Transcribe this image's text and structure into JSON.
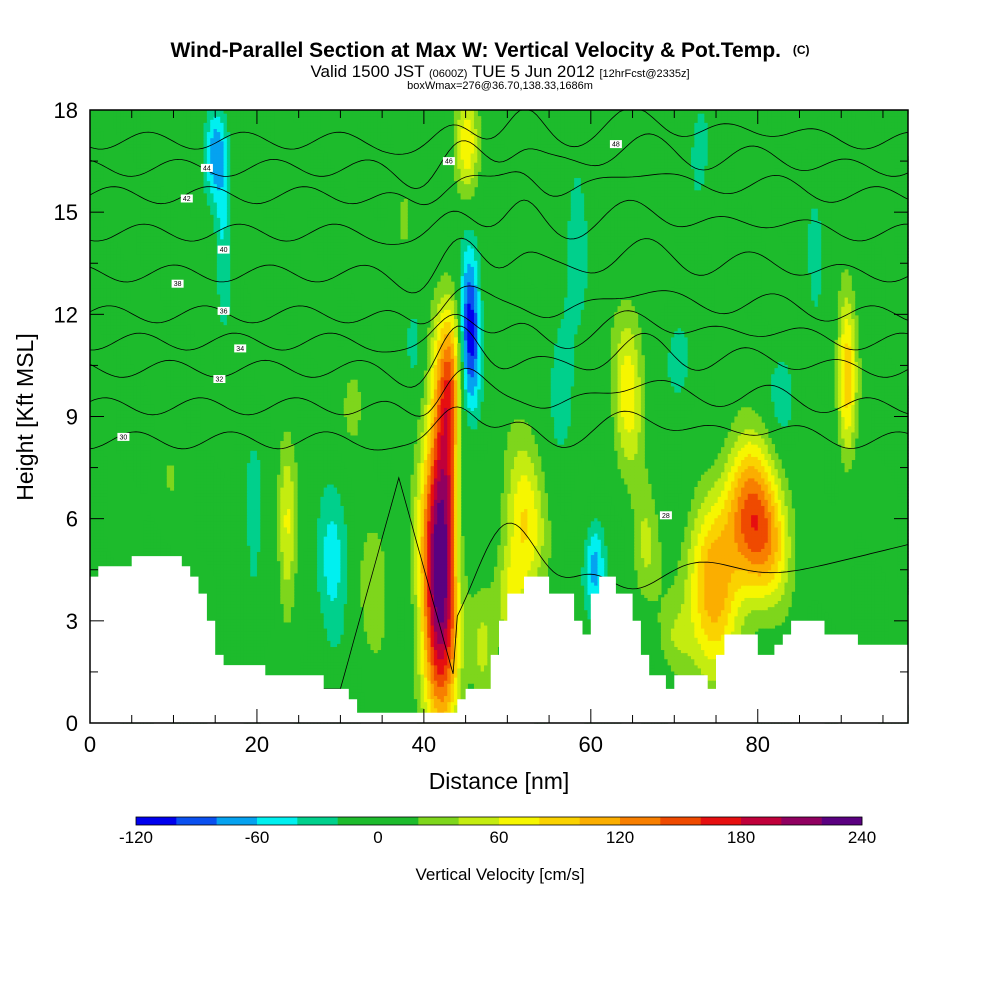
{
  "header": {
    "title": "Wind-Parallel Section at Max W: Vertical Velocity & Pot.Temp.",
    "copyright": "(C)",
    "valid_prefix": "Valid 1500 JST",
    "valid_utc": "(0600Z)",
    "valid_date": "TUE 5 Jun 2012",
    "forecast": "[12hrFcst@2335z]",
    "box_info": "boxWmax=276@36.70,138.33,1686m"
  },
  "colors": {
    "frame": "#000000",
    "terrain": "#ffffff",
    "background_band": "#1dbb2c",
    "palette": [
      "#0000ee",
      "#0a50f0",
      "#05a2f0",
      "#00f0f0",
      "#00d08c",
      "#1dbb2c",
      "#1dbb2c",
      "#7ed61c",
      "#c4ec10",
      "#f6f600",
      "#fad200",
      "#fbae00",
      "#f87f00",
      "#ef4a00",
      "#e60f10",
      "#c0003a",
      "#900060",
      "#5a0080"
    ]
  },
  "chart_data": {
    "type": "heatmap",
    "xlabel": "Distance [nm]",
    "ylabel": "Height [Kft MSL]",
    "xlim": [
      0,
      98
    ],
    "ylim": [
      0,
      18
    ],
    "x_ticks": [
      0,
      20,
      40,
      60,
      80
    ],
    "y_ticks": [
      0,
      3,
      6,
      9,
      12,
      15,
      18
    ],
    "colorbar": {
      "label": "Vertical Velocity [cm/s]",
      "min": -120,
      "max": 240,
      "step": 20,
      "tick_values": [
        -120,
        -60,
        0,
        60,
        120,
        180,
        240
      ]
    },
    "terrain_height_kft": [
      [
        0,
        4.3
      ],
      [
        1,
        4.3
      ],
      [
        1,
        4.6
      ],
      [
        5,
        4.6
      ],
      [
        5,
        4.9
      ],
      [
        11,
        4.9
      ],
      [
        11,
        4.6
      ],
      [
        12,
        4.6
      ],
      [
        12,
        4.3
      ],
      [
        13,
        4.3
      ],
      [
        13,
        3.8
      ],
      [
        14,
        3.8
      ],
      [
        14,
        3.0
      ],
      [
        15,
        3.0
      ],
      [
        15,
        2.0
      ],
      [
        16,
        2.0
      ],
      [
        16,
        1.7
      ],
      [
        21,
        1.7
      ],
      [
        21,
        1.4
      ],
      [
        28,
        1.4
      ],
      [
        28,
        1.0
      ],
      [
        31,
        1.0
      ],
      [
        31,
        0.7
      ],
      [
        32,
        0.7
      ],
      [
        32,
        0.3
      ],
      [
        44,
        0.3
      ],
      [
        44,
        0.7
      ],
      [
        45,
        0.7
      ],
      [
        45,
        1.0
      ],
      [
        48,
        1.0
      ],
      [
        48,
        2.0
      ],
      [
        49,
        2.0
      ],
      [
        49,
        3.0
      ],
      [
        50,
        3.0
      ],
      [
        50,
        3.8
      ],
      [
        52,
        3.8
      ],
      [
        52,
        4.3
      ],
      [
        55,
        4.3
      ],
      [
        55,
        3.8
      ],
      [
        58,
        3.8
      ],
      [
        58,
        3.0
      ],
      [
        59,
        3.0
      ],
      [
        59,
        2.6
      ],
      [
        60,
        2.6
      ],
      [
        60,
        3.8
      ],
      [
        61,
        3.8
      ],
      [
        61,
        4.3
      ],
      [
        63,
        4.3
      ],
      [
        63,
        3.8
      ],
      [
        65,
        3.8
      ],
      [
        65,
        3.0
      ],
      [
        66,
        3.0
      ],
      [
        66,
        2.0
      ],
      [
        67,
        2.0
      ],
      [
        67,
        1.4
      ],
      [
        69,
        1.4
      ],
      [
        69,
        1.0
      ],
      [
        70,
        1.0
      ],
      [
        70,
        1.4
      ],
      [
        74,
        1.4
      ],
      [
        74,
        1.0
      ],
      [
        75,
        1.0
      ],
      [
        75,
        2.0
      ],
      [
        76,
        2.0
      ],
      [
        76,
        2.6
      ],
      [
        80,
        2.6
      ],
      [
        80,
        2.0
      ],
      [
        82,
        2.0
      ],
      [
        82,
        2.3
      ],
      [
        83,
        2.3
      ],
      [
        83,
        2.6
      ],
      [
        84,
        2.6
      ],
      [
        84,
        3.0
      ],
      [
        88,
        3.0
      ],
      [
        88,
        2.6
      ],
      [
        92,
        2.6
      ],
      [
        92,
        2.3
      ],
      [
        98,
        2.3
      ]
    ],
    "vertical_velocity_features": [
      {
        "x": 42,
        "y": 4.6,
        "sx": 1.6,
        "sy": 3.2,
        "w": 250
      },
      {
        "x": 43.2,
        "y": 9.8,
        "sx": 1.2,
        "sy": 1.8,
        "w": 120
      },
      {
        "x": 45.2,
        "y": 17.0,
        "sx": 1.0,
        "sy": 1.2,
        "w": 70
      },
      {
        "x": 45.5,
        "y": 11.5,
        "sx": 0.9,
        "sy": 1.8,
        "w": -120
      },
      {
        "x": 44.3,
        "y": 7.0,
        "sx": 0.7,
        "sy": 2.5,
        "w": -60
      },
      {
        "x": 52,
        "y": 6.0,
        "sx": 1.8,
        "sy": 1.6,
        "w": 80
      },
      {
        "x": 50.5,
        "y": 3.6,
        "sx": 1.2,
        "sy": 1.0,
        "w": 50
      },
      {
        "x": 60.5,
        "y": 4.6,
        "sx": 0.9,
        "sy": 1.0,
        "w": -70
      },
      {
        "x": 64.5,
        "y": 9.8,
        "sx": 1.3,
        "sy": 1.6,
        "w": 75
      },
      {
        "x": 66.5,
        "y": 5.3,
        "sx": 1.2,
        "sy": 1.2,
        "w": 45
      },
      {
        "x": 74.5,
        "y": 3.8,
        "sx": 2.2,
        "sy": 1.8,
        "w": 110
      },
      {
        "x": 79,
        "y": 6.2,
        "sx": 2.2,
        "sy": 1.6,
        "w": 125
      },
      {
        "x": 81.5,
        "y": 5.2,
        "sx": 2.0,
        "sy": 1.2,
        "w": 70
      },
      {
        "x": 90.7,
        "y": 10.2,
        "sx": 0.8,
        "sy": 1.8,
        "w": 90
      },
      {
        "x": 15,
        "y": 16.8,
        "sx": 0.9,
        "sy": 1.0,
        "w": -70
      },
      {
        "x": 16,
        "y": 14.5,
        "sx": 0.7,
        "sy": 2.0,
        "w": -40
      },
      {
        "x": 23.6,
        "y": 5.6,
        "sx": 0.8,
        "sy": 2.0,
        "w": 60
      },
      {
        "x": 29,
        "y": 4.5,
        "sx": 1.4,
        "sy": 2.0,
        "w": -45
      },
      {
        "x": 19.5,
        "y": 5.5,
        "sx": 1.1,
        "sy": 2.0,
        "w": -30
      },
      {
        "x": 34,
        "y": 3.8,
        "sx": 1.4,
        "sy": 2.0,
        "w": 30
      },
      {
        "x": 31.5,
        "y": 9.5,
        "sx": 1.0,
        "sy": 1.0,
        "w": 30
      },
      {
        "x": 9.5,
        "y": 7.0,
        "sx": 1.2,
        "sy": 1.2,
        "w": 15
      },
      {
        "x": 58.5,
        "y": 14.5,
        "sx": 1.0,
        "sy": 2.0,
        "w": -35
      },
      {
        "x": 56.5,
        "y": 10.0,
        "sx": 1.2,
        "sy": 1.5,
        "w": -40
      },
      {
        "x": 70.5,
        "y": 10.5,
        "sx": 1.2,
        "sy": 1.0,
        "w": -35
      },
      {
        "x": 83,
        "y": 9.5,
        "sx": 1.2,
        "sy": 1.0,
        "w": -35
      },
      {
        "x": 73,
        "y": 16.5,
        "sx": 1.0,
        "sy": 1.5,
        "w": -30
      },
      {
        "x": 87,
        "y": 14.0,
        "sx": 1.0,
        "sy": 1.5,
        "w": -30
      },
      {
        "x": 39,
        "y": 11.0,
        "sx": 1.0,
        "sy": 1.0,
        "w": -30
      },
      {
        "x": 47,
        "y": 2.0,
        "sx": 1.0,
        "sy": 1.2,
        "w": 45
      },
      {
        "x": 70,
        "y": 2.5,
        "sx": 1.5,
        "sy": 0.8,
        "w": 30
      },
      {
        "x": 37.5,
        "y": 14.5,
        "sx": 0.9,
        "sy": 1.2,
        "w": 20
      }
    ],
    "theta_contours": [
      {
        "value": 28,
        "base": 1.0,
        "label": "28",
        "label_xy": [
          69.0,
          6.1
        ]
      },
      {
        "value": 30,
        "base": 8.3,
        "label": "30",
        "label_xy": [
          4.0,
          8.4
        ]
      },
      {
        "value": 32,
        "base": 9.3,
        "label": "32",
        "label_xy": [
          15.5,
          10.1
        ]
      },
      {
        "value": 34,
        "base": 10.4,
        "label": "34",
        "label_xy": [
          18.0,
          11.0
        ]
      },
      {
        "value": 36,
        "base": 11.2,
        "label": "36",
        "label_xy": [
          16.0,
          12.1
        ]
      },
      {
        "value": 38,
        "base": 12.0,
        "label": "38",
        "label_xy": [
          10.5,
          12.9
        ]
      },
      {
        "value": 40,
        "base": 13.2,
        "label": "40",
        "label_xy": [
          16.0,
          13.9
        ]
      },
      {
        "value": 42,
        "base": 14.4,
        "label": "42",
        "label_xy": [
          11.6,
          15.4
        ]
      },
      {
        "value": 44,
        "base": 15.5,
        "label": "44",
        "label_xy": [
          14.0,
          16.3
        ]
      },
      {
        "value": 46,
        "base": 16.3,
        "label": "46",
        "label_xy": [
          43.0,
          16.5
        ]
      },
      {
        "value": 48,
        "base": 17.1,
        "label": "48",
        "label_xy": [
          63.0,
          17.0
        ]
      }
    ]
  }
}
